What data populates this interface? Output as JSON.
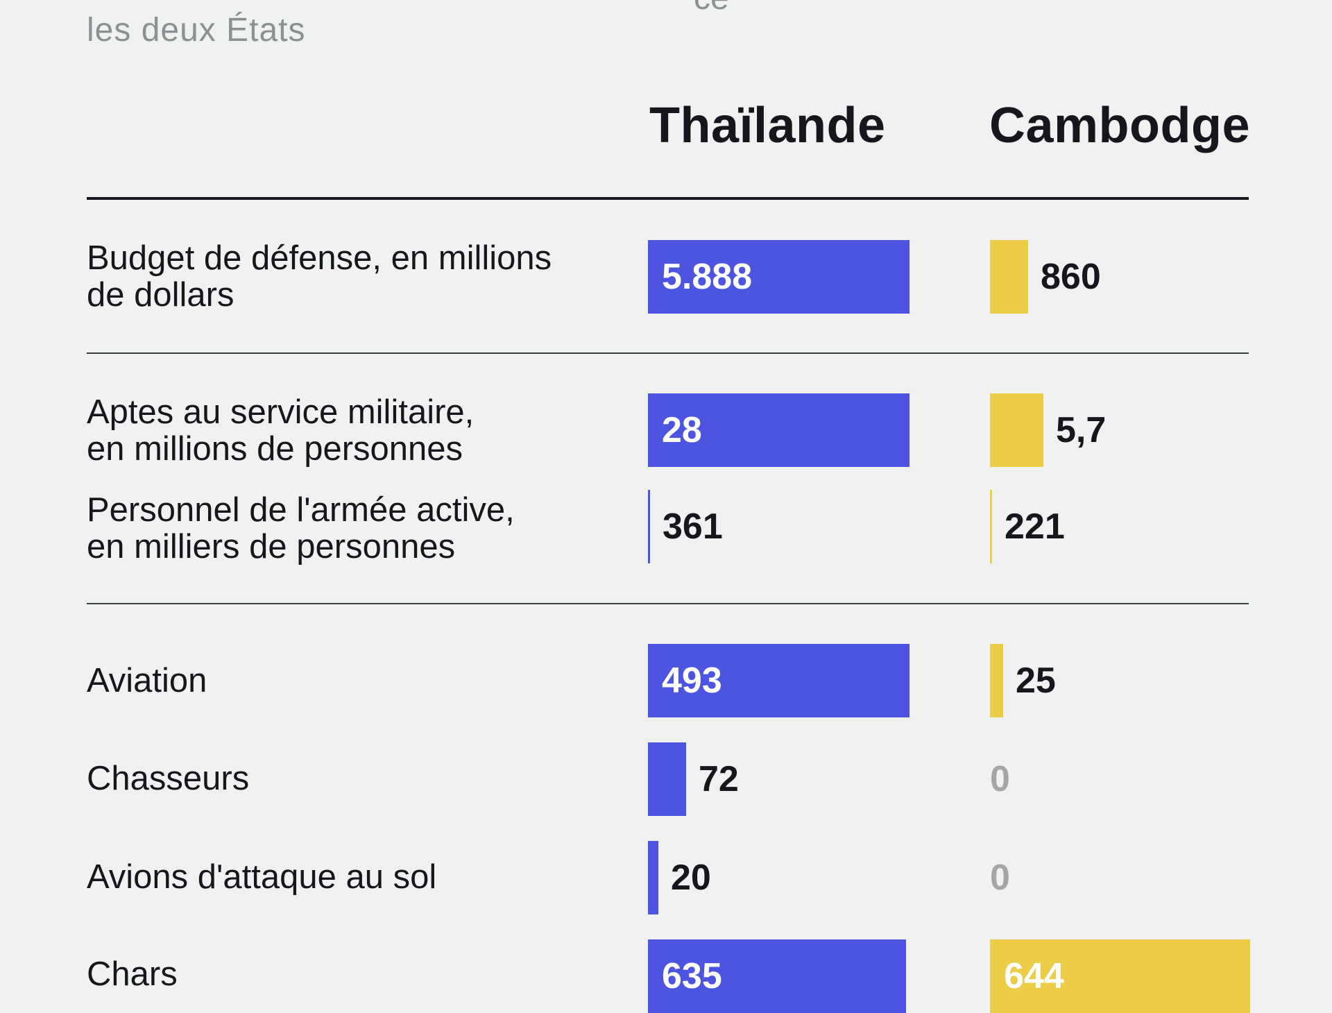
{
  "subtitle": "les deux États",
  "subtitle_cut": "ce",
  "colors": {
    "thailand": "#4d54e0",
    "cambodia": "#ebcd48",
    "background": "#f0f1f1",
    "text": "#15171c",
    "zero_text": "#a3a5a8"
  },
  "chart_data": {
    "type": "bar",
    "orientation": "horizontal",
    "subtitle": "les deux États",
    "series": [
      {
        "name": "Thaïlande"
      },
      {
        "name": "Cambodge"
      }
    ],
    "rows": [
      {
        "label": "Budget de défense, en millions\nde dollars",
        "thailand": "5.888",
        "cambodia": "860",
        "thailand_value": 5888,
        "cambodia_value": 860,
        "group": 1
      },
      {
        "label": "Aptes au service militaire,\nen millions de personnes",
        "thailand": "28",
        "cambodia": "5,7",
        "thailand_value": 28,
        "cambodia_value": 5.7,
        "group": 2
      },
      {
        "label": "Personnel de l'armée active,\nen milliers de personnes",
        "thailand": "361",
        "cambodia": "221",
        "thailand_value": 361,
        "cambodia_value": 221,
        "group": 2
      },
      {
        "label": "Aviation",
        "thailand": "493",
        "cambodia": "25",
        "thailand_value": 493,
        "cambodia_value": 25,
        "group": 3
      },
      {
        "label": "Chasseurs",
        "thailand": "72",
        "cambodia": "0",
        "thailand_value": 72,
        "cambodia_value": 0,
        "group": 3
      },
      {
        "label": "Avions d'attaque au sol",
        "thailand": "20",
        "cambodia": "0",
        "thailand_value": 20,
        "cambodia_value": 0,
        "group": 3
      },
      {
        "label": "Chars",
        "thailand": "635",
        "cambodia": "644",
        "thailand_value": 635,
        "cambodia_value": 644,
        "group": 3
      }
    ],
    "bar_fraction": [
      {
        "thailand": 1.0,
        "cambodia": 0.146
      },
      {
        "thailand": 1.0,
        "cambodia": 0.204
      },
      {
        "thailand": 0.0,
        "cambodia": 0.0
      },
      {
        "thailand": 1.0,
        "cambodia": 0.051
      },
      {
        "thailand": 0.146,
        "cambodia": 0.0
      },
      {
        "thailand": 0.041,
        "cambodia": 0.0
      },
      {
        "thailand": 0.986,
        "cambodia": 1.0
      }
    ]
  }
}
